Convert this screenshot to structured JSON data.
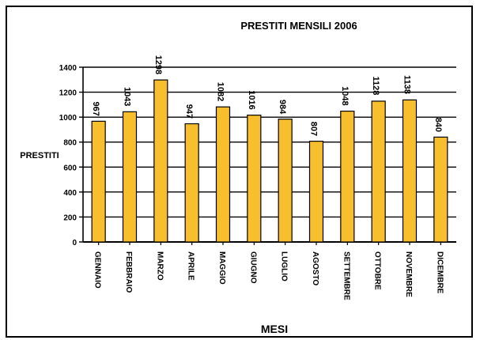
{
  "chart_data": {
    "type": "bar",
    "title": "PRESTITI MENSILI 2006",
    "xlabel": "MESI",
    "ylabel": "PRESTITI",
    "categories": [
      "GENNAIO",
      "FEBBRAIO",
      "MARZO",
      "APRILE",
      "MAGGIO",
      "GIUGNO",
      "LUGLIO",
      "AGOSTO",
      "SETTEMBRE",
      "OTTOBRE",
      "NOVEMBRE",
      "DICEMBRE"
    ],
    "values": [
      967,
      1043,
      1298,
      947,
      1082,
      1016,
      984,
      807,
      1048,
      1128,
      1138,
      840
    ],
    "ylim": [
      0,
      1400
    ],
    "yticks": [
      0,
      200,
      400,
      600,
      800,
      1000,
      1200,
      1400
    ],
    "grid": true,
    "colors": {
      "bar": "#F7BE2E",
      "bar_edge": "#000000",
      "grid": "#000000"
    }
  }
}
